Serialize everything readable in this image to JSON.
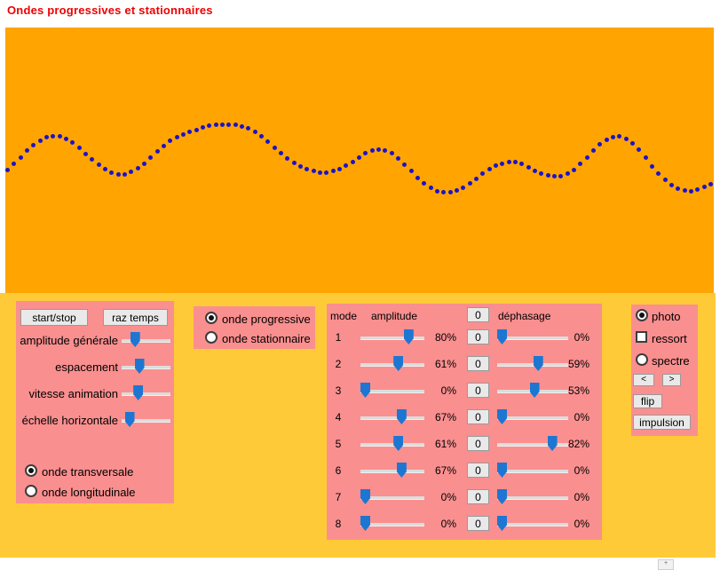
{
  "title": "Ondes progressives et stationnaires",
  "colors": {
    "canvas_orange": "#ffa400",
    "background_yellow": "#ffca38",
    "panel_pink": "#fa8f8f",
    "slider_thumb_blue": "#1d76d2",
    "wave_dot_blue": "#1d13c8",
    "title_red": "#ee0000"
  },
  "left_panel": {
    "start_stop_label": "start/stop",
    "raz_temps_label": "raz temps",
    "sliders": [
      {
        "label": "amplitude générale",
        "fraction": 0.22
      },
      {
        "label": "espacement",
        "fraction": 0.33
      },
      {
        "label": "vitesse animation",
        "fraction": 0.3
      },
      {
        "label": "échelle horizontale",
        "fraction": 0.08
      }
    ],
    "radios": [
      {
        "label": "onde transversale",
        "checked": true
      },
      {
        "label": "onde longitudinale",
        "checked": false
      }
    ]
  },
  "type_panel": {
    "radios": [
      {
        "label": "onde progressive",
        "checked": true
      },
      {
        "label": "onde stationnaire",
        "checked": false
      }
    ]
  },
  "mode_panel": {
    "headers": {
      "mode": "mode",
      "amplitude": "amplitude",
      "zero": "0",
      "dephasage": "déphasage"
    },
    "rows": [
      {
        "mode": "1",
        "amplitude_pct": 80,
        "amplitude_label": "80%",
        "zero": "0",
        "dephasage_pct": 0,
        "dephasage_label": "0%"
      },
      {
        "mode": "2",
        "amplitude_pct": 61,
        "amplitude_label": "61%",
        "zero": "0",
        "dephasage_pct": 59,
        "dephasage_label": "59%"
      },
      {
        "mode": "3",
        "amplitude_pct": 0,
        "amplitude_label": "0%",
        "zero": "0",
        "dephasage_pct": 53,
        "dephasage_label": "53%"
      },
      {
        "mode": "4",
        "amplitude_pct": 67,
        "amplitude_label": "67%",
        "zero": "0",
        "dephasage_pct": 0,
        "dephasage_label": "0%"
      },
      {
        "mode": "5",
        "amplitude_pct": 61,
        "amplitude_label": "61%",
        "zero": "0",
        "dephasage_pct": 82,
        "dephasage_label": "82%"
      },
      {
        "mode": "6",
        "amplitude_pct": 67,
        "amplitude_label": "67%",
        "zero": "0",
        "dephasage_pct": 0,
        "dephasage_label": "0%"
      },
      {
        "mode": "7",
        "amplitude_pct": 0,
        "amplitude_label": "0%",
        "zero": "0",
        "dephasage_pct": 0,
        "dephasage_label": "0%"
      },
      {
        "mode": "8",
        "amplitude_pct": 0,
        "amplitude_label": "0%",
        "zero": "0",
        "dephasage_pct": 0,
        "dephasage_label": "0%"
      }
    ]
  },
  "right_panel": {
    "photo_label": "photo",
    "photo_checked": true,
    "ressort_label": "ressort",
    "ressort_checked": false,
    "spectre_label": "spectre",
    "spectre_checked": false,
    "prev_label": "<",
    "next_label": ">",
    "flip_label": "flip",
    "impulsion_label": "impulsion"
  },
  "wave": {
    "dots": [
      [
        1,
        197.5
      ],
      [
        8.3,
        191.5
      ],
      [
        15.7,
        184.5
      ],
      [
        23,
        177
      ],
      [
        30.3,
        169.5
      ],
      [
        37.7,
        163
      ],
      [
        45,
        158
      ],
      [
        52.3,
        154.5
      ],
      [
        59.7,
        153
      ],
      [
        67,
        153.5
      ],
      [
        74.3,
        156
      ],
      [
        81.7,
        160.5
      ],
      [
        89,
        166.5
      ],
      [
        96.3,
        173
      ],
      [
        103.7,
        179.5
      ],
      [
        111,
        185.5
      ],
      [
        118.3,
        190.5
      ],
      [
        125.7,
        194
      ],
      [
        133,
        196
      ],
      [
        140.3,
        196
      ],
      [
        147.7,
        193.5
      ],
      [
        155,
        189.5
      ],
      [
        162.3,
        184
      ],
      [
        169.7,
        177.5
      ],
      [
        177,
        170.5
      ],
      [
        184.3,
        164
      ],
      [
        191.7,
        158.5
      ],
      [
        199,
        154.5
      ],
      [
        206.3,
        151.5
      ],
      [
        213.7,
        148.5
      ],
      [
        221,
        146
      ],
      [
        228.3,
        143.5
      ],
      [
        235.7,
        141.5
      ],
      [
        243,
        140.5
      ],
      [
        250.3,
        140
      ],
      [
        257.7,
        140
      ],
      [
        265,
        140.5
      ],
      [
        272.3,
        142
      ],
      [
        279.7,
        144.5
      ],
      [
        287,
        148.5
      ],
      [
        294.3,
        153.5
      ],
      [
        301.7,
        159.5
      ],
      [
        309,
        166
      ],
      [
        316.3,
        172.5
      ],
      [
        323.7,
        178.5
      ],
      [
        331,
        183.5
      ],
      [
        338.3,
        187.5
      ],
      [
        345.7,
        190.5
      ],
      [
        353,
        192.5
      ],
      [
        360.3,
        194
      ],
      [
        367.7,
        194
      ],
      [
        375,
        192.5
      ],
      [
        382.3,
        190
      ],
      [
        389.7,
        186.5
      ],
      [
        397,
        182
      ],
      [
        404.3,
        177
      ],
      [
        411.7,
        172.5
      ],
      [
        419,
        169.5
      ],
      [
        426.3,
        168
      ],
      [
        433.7,
        169
      ],
      [
        441,
        172.5
      ],
      [
        448.3,
        178
      ],
      [
        455.7,
        185
      ],
      [
        463,
        192.5
      ],
      [
        470.3,
        200
      ],
      [
        477.7,
        206.5
      ],
      [
        485,
        211.5
      ],
      [
        492.3,
        215
      ],
      [
        499.7,
        216.5
      ],
      [
        507,
        216.5
      ],
      [
        514.3,
        214.5
      ],
      [
        521.7,
        211
      ],
      [
        529,
        206.5
      ],
      [
        536.3,
        201
      ],
      [
        543.7,
        195.5
      ],
      [
        551,
        190.5
      ],
      [
        558.3,
        186.5
      ],
      [
        565.7,
        184
      ],
      [
        573,
        182.5
      ],
      [
        580.3,
        182.5
      ],
      [
        587.7,
        184.5
      ],
      [
        595,
        188
      ],
      [
        602.3,
        192
      ],
      [
        609.7,
        195.5
      ],
      [
        617,
        197.5
      ],
      [
        624.3,
        198.5
      ],
      [
        631.7,
        198
      ],
      [
        639,
        195.5
      ],
      [
        646.3,
        191
      ],
      [
        653.7,
        184.5
      ],
      [
        661,
        177
      ],
      [
        668.3,
        169
      ],
      [
        675.7,
        162
      ],
      [
        683,
        157
      ],
      [
        690.3,
        154
      ],
      [
        697.7,
        153.5
      ],
      [
        705,
        156
      ],
      [
        712.3,
        161
      ],
      [
        719.7,
        168.5
      ],
      [
        727,
        177.5
      ],
      [
        734.3,
        187
      ],
      [
        741.7,
        195.5
      ],
      [
        749,
        202.5
      ],
      [
        756.3,
        208
      ],
      [
        763.7,
        212
      ],
      [
        771,
        214.5
      ],
      [
        778.3,
        215
      ],
      [
        785.7,
        213.5
      ],
      [
        793,
        210.5
      ],
      [
        800.3,
        207.5
      ],
      [
        807.7,
        205
      ]
    ]
  },
  "scroll_fragment_glyph": "+"
}
